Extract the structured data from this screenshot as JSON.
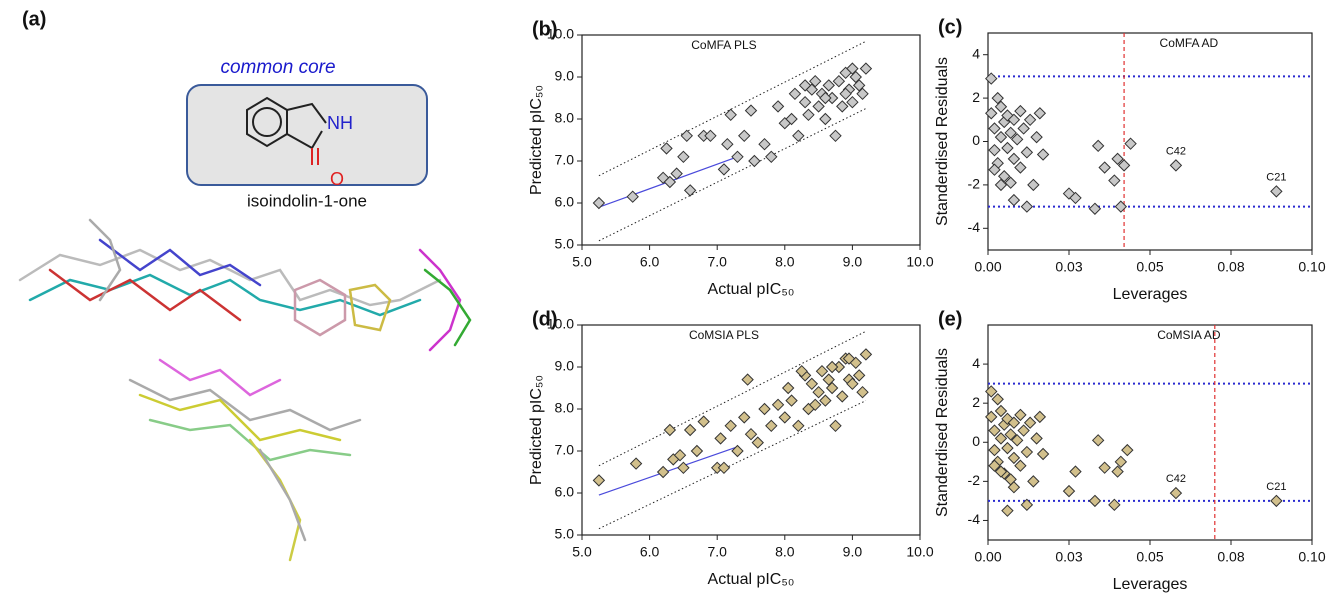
{
  "figure": {
    "panel_label": "(a)",
    "core_title": "common core",
    "atom_n": "NH",
    "atom_o": "O",
    "core_name": "isoindolin-1-one"
  },
  "chart_data": [
    {
      "type": "scatter",
      "panel_label": "(b)",
      "title": "CoMFA PLS",
      "x_label": "Actual pIC₅₀",
      "y_label": "Predicted pIC₅₀",
      "color": "#c8c8c8",
      "xlim": [
        5,
        10
      ],
      "ylim": [
        5,
        10
      ],
      "xticks": [
        {
          "value": 5,
          "label": "5.0"
        },
        {
          "value": 6,
          "label": "6.0"
        },
        {
          "value": 7,
          "label": "7.0"
        },
        {
          "value": 8,
          "label": "8.0"
        },
        {
          "value": 9,
          "label": "9.0"
        },
        {
          "value": 10,
          "label": "10.0"
        }
      ],
      "yticks": [
        {
          "value": 5,
          "label": "5.0"
        },
        {
          "value": 6,
          "label": "6.0"
        },
        {
          "value": 7,
          "label": "7.0"
        },
        {
          "value": 8,
          "label": "8.0"
        },
        {
          "value": 9,
          "label": "9.0"
        },
        {
          "value": 10,
          "label": "10.0"
        }
      ],
      "x": [
        5.25,
        5.75,
        6.2,
        6.25,
        6.3,
        6.4,
        6.5,
        6.55,
        6.6,
        6.8,
        6.9,
        7.1,
        7.15,
        7.2,
        7.3,
        7.4,
        7.5,
        7.55,
        7.7,
        7.8,
        7.9,
        8.0,
        8.1,
        8.15,
        8.2,
        8.3,
        8.35,
        8.4,
        8.45,
        8.5,
        8.55,
        8.6,
        8.65,
        8.7,
        8.75,
        8.8,
        8.85,
        8.9,
        8.95,
        9.0,
        9.05,
        9.1,
        9.15,
        9.2,
        9.0,
        8.3,
        8.6,
        8.9
      ],
      "y": [
        6.0,
        6.15,
        6.6,
        7.3,
        6.5,
        6.7,
        7.1,
        7.6,
        6.3,
        7.6,
        7.6,
        6.8,
        7.4,
        8.1,
        7.1,
        7.6,
        8.2,
        7.0,
        7.4,
        7.1,
        8.3,
        7.9,
        8.0,
        8.6,
        7.6,
        8.4,
        8.1,
        8.7,
        8.9,
        8.3,
        8.6,
        8.0,
        8.8,
        8.5,
        7.6,
        8.9,
        8.3,
        9.1,
        8.7,
        8.4,
        9.0,
        8.8,
        8.6,
        9.2,
        9.2,
        8.8,
        8.5,
        8.6
      ],
      "lines": [
        {
          "x": [
            5.25,
            7.3
          ],
          "y": [
            5.9,
            7.1
          ],
          "color": "#4a4adb",
          "style": "solid"
        },
        {
          "x": [
            5.25,
            9.2
          ],
          "y": [
            6.65,
            9.85
          ],
          "color": "#222222",
          "style": "dotted"
        },
        {
          "x": [
            5.25,
            9.2
          ],
          "y": [
            5.1,
            8.25
          ],
          "color": "#222222",
          "style": "dotted"
        }
      ]
    },
    {
      "type": "scatter",
      "panel_label": "(c)",
      "title": "CoMFA AD",
      "x_label": "Leverages",
      "y_label": "Standerdised Residuals",
      "color": "#c8c8c8",
      "xlim": [
        0,
        0.1
      ],
      "ylim": [
        -5,
        5
      ],
      "xticks": [
        {
          "value": 0,
          "label": "0.00"
        },
        {
          "value": 0.025,
          "label": "0.03"
        },
        {
          "value": 0.05,
          "label": "0.05"
        },
        {
          "value": 0.075,
          "label": "0.08"
        },
        {
          "value": 0.1,
          "label": "0.10"
        }
      ],
      "yticks": [
        -4,
        -2,
        0,
        2,
        4
      ],
      "x": [
        0.001,
        0.001,
        0.002,
        0.002,
        0.003,
        0.003,
        0.004,
        0.004,
        0.005,
        0.005,
        0.006,
        0.006,
        0.007,
        0.007,
        0.008,
        0.008,
        0.009,
        0.01,
        0.01,
        0.011,
        0.012,
        0.013,
        0.014,
        0.015,
        0.016,
        0.017,
        0.008,
        0.012,
        0.004,
        0.002,
        0.025,
        0.027,
        0.033,
        0.034,
        0.036,
        0.039,
        0.04,
        0.041,
        0.042,
        0.044,
        0.058,
        0.089
      ],
      "y": [
        2.9,
        1.3,
        0.6,
        -0.4,
        2.0,
        -1.0,
        0.2,
        1.6,
        -1.6,
        0.9,
        -0.3,
        1.2,
        0.4,
        -1.9,
        1.0,
        -0.8,
        0.1,
        -1.2,
        1.4,
        0.6,
        -0.5,
        1.0,
        -2.0,
        0.2,
        1.3,
        -0.6,
        -2.7,
        -3.0,
        -2.0,
        -1.3,
        -2.4,
        -2.6,
        -3.1,
        -0.2,
        -1.2,
        -1.8,
        -0.8,
        -3.0,
        -1.1,
        -0.1,
        -1.1,
        -2.3
      ],
      "hlines": [
        {
          "value": 3,
          "color": "#2a2ad0"
        },
        {
          "value": -3,
          "color": "#2a2ad0"
        }
      ],
      "vlines": [
        {
          "value": 0.042,
          "color": "#e03030"
        }
      ],
      "annotations": [
        {
          "text": "C42",
          "x": 0.058,
          "y": -1.1
        },
        {
          "text": "C21",
          "x": 0.089,
          "y": -2.3
        }
      ]
    },
    {
      "type": "scatter",
      "panel_label": "(d)",
      "title": "CoMSIA PLS",
      "x_label": "Actual pIC₅₀",
      "y_label": "Predicted pIC₅₀",
      "color": "#d2c08c",
      "xlim": [
        5,
        10
      ],
      "ylim": [
        5,
        10
      ],
      "xticks": [
        {
          "value": 5,
          "label": "5.0"
        },
        {
          "value": 6,
          "label": "6.0"
        },
        {
          "value": 7,
          "label": "7.0"
        },
        {
          "value": 8,
          "label": "8.0"
        },
        {
          "value": 9,
          "label": "9.0"
        },
        {
          "value": 10,
          "label": "10.0"
        }
      ],
      "yticks": [
        {
          "value": 5,
          "label": "5.0"
        },
        {
          "value": 6,
          "label": "6.0"
        },
        {
          "value": 7,
          "label": "7.0"
        },
        {
          "value": 8,
          "label": "8.0"
        },
        {
          "value": 9,
          "label": "9.0"
        },
        {
          "value": 10,
          "label": "10.0"
        }
      ],
      "x": [
        5.25,
        5.8,
        6.2,
        6.3,
        6.35,
        6.45,
        6.5,
        6.6,
        6.7,
        6.8,
        7.0,
        7.05,
        7.1,
        7.2,
        7.3,
        7.4,
        7.45,
        7.5,
        7.6,
        7.7,
        7.8,
        7.9,
        8.0,
        8.05,
        8.1,
        8.2,
        8.3,
        8.35,
        8.4,
        8.5,
        8.55,
        8.6,
        8.65,
        8.7,
        8.75,
        8.8,
        8.85,
        8.9,
        8.95,
        9.0,
        9.05,
        9.1,
        9.15,
        9.2,
        8.25,
        8.45,
        8.7,
        8.95
      ],
      "y": [
        6.3,
        6.7,
        6.5,
        7.5,
        6.8,
        6.9,
        6.6,
        7.5,
        7.0,
        7.7,
        6.6,
        7.3,
        6.6,
        7.6,
        7.0,
        7.8,
        8.7,
        7.4,
        7.2,
        8.0,
        7.6,
        8.1,
        7.8,
        8.5,
        8.2,
        7.6,
        8.8,
        8.0,
        8.6,
        8.4,
        8.9,
        8.2,
        8.7,
        8.5,
        7.6,
        9.0,
        8.3,
        9.2,
        8.7,
        8.6,
        9.1,
        8.8,
        8.4,
        9.3,
        8.9,
        8.1,
        9.0,
        9.2
      ],
      "lines": [
        {
          "x": [
            5.25,
            7.3
          ],
          "y": [
            5.95,
            7.1
          ],
          "color": "#4a4adb",
          "style": "solid"
        },
        {
          "x": [
            5.25,
            9.2
          ],
          "y": [
            6.65,
            9.85
          ],
          "color": "#222222",
          "style": "dotted"
        },
        {
          "x": [
            5.25,
            9.2
          ],
          "y": [
            5.15,
            8.2
          ],
          "color": "#222222",
          "style": "dotted"
        }
      ]
    },
    {
      "type": "scatter",
      "panel_label": "(e)",
      "title": "CoMSIA AD",
      "x_label": "Leverages",
      "y_label": "Standerdised Residuals",
      "color": "#d2c08c",
      "xlim": [
        0,
        0.1
      ],
      "ylim": [
        -5,
        6
      ],
      "xticks": [
        {
          "value": 0,
          "label": "0.00"
        },
        {
          "value": 0.025,
          "label": "0.03"
        },
        {
          "value": 0.05,
          "label": "0.05"
        },
        {
          "value": 0.075,
          "label": "0.08"
        },
        {
          "value": 0.1,
          "label": "0.10"
        }
      ],
      "yticks": [
        -4,
        -2,
        0,
        2,
        4
      ],
      "x": [
        0.001,
        0.001,
        0.002,
        0.002,
        0.003,
        0.003,
        0.004,
        0.004,
        0.005,
        0.005,
        0.006,
        0.006,
        0.007,
        0.007,
        0.008,
        0.008,
        0.009,
        0.01,
        0.01,
        0.011,
        0.012,
        0.013,
        0.014,
        0.015,
        0.016,
        0.017,
        0.008,
        0.012,
        0.004,
        0.002,
        0.006,
        0.025,
        0.027,
        0.033,
        0.034,
        0.036,
        0.039,
        0.04,
        0.041,
        0.043,
        0.058,
        0.089
      ],
      "y": [
        2.6,
        1.3,
        0.6,
        -0.4,
        2.2,
        -1.0,
        0.2,
        1.6,
        -1.6,
        0.9,
        -0.3,
        1.2,
        0.4,
        -1.9,
        1.0,
        -0.8,
        0.1,
        -1.2,
        1.4,
        0.6,
        -0.5,
        1.0,
        -2.0,
        0.2,
        1.3,
        -0.6,
        -2.3,
        -3.2,
        -1.5,
        -1.2,
        -3.5,
        -2.5,
        -1.5,
        -3.0,
        0.1,
        -1.3,
        -3.2,
        -1.5,
        -1.0,
        -0.4,
        -2.6,
        -3.0
      ],
      "hlines": [
        {
          "value": 3,
          "color": "#2a2ad0"
        },
        {
          "value": -3,
          "color": "#2a2ad0"
        }
      ],
      "vlines": [
        {
          "value": 0.07,
          "color": "#e03030"
        }
      ],
      "annotations": [
        {
          "text": "C42",
          "x": 0.058,
          "y": -2.6
        },
        {
          "text": "C21",
          "x": 0.089,
          "y": -3.0
        }
      ]
    }
  ]
}
